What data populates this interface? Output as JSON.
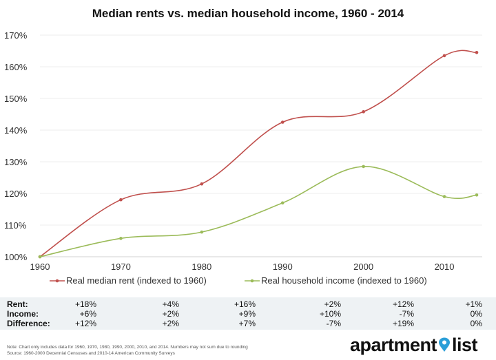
{
  "chart_data": {
    "type": "line",
    "title": "Median rents vs. median household income, 1960 - 2014",
    "x": [
      1960,
      1970,
      1980,
      1990,
      2000,
      2010,
      2014
    ],
    "x_ticks": [
      "1960",
      "1970",
      "1980",
      "1990",
      "2000",
      "2010"
    ],
    "y_ticks": [
      "100%",
      "110%",
      "120%",
      "130%",
      "140%",
      "150%",
      "160%",
      "170%"
    ],
    "ylim": [
      100,
      170
    ],
    "grid": true,
    "legend_position": "bottom",
    "series": [
      {
        "name": "Real median rent (indexed to 1960)",
        "color": "#c0504d",
        "values": [
          100,
          118,
          123,
          142.5,
          145.8,
          163.5,
          164.5
        ]
      },
      {
        "name": "Real household income (indexed to 1960)",
        "color": "#9bbb59",
        "values": [
          100,
          105.8,
          107.8,
          117,
          128.5,
          119,
          119.5
        ]
      }
    ]
  },
  "table": {
    "rows": [
      {
        "label": "Rent:",
        "values": [
          "+18%",
          "+4%",
          "+16%",
          "+2%",
          "+12%",
          "+1%"
        ]
      },
      {
        "label": "Income:",
        "values": [
          "+6%",
          "+2%",
          "+9%",
          "+10%",
          "-7%",
          "0%"
        ]
      },
      {
        "label": "Difference:",
        "values": [
          "+12%",
          "+2%",
          "+7%",
          "-7%",
          "+19%",
          "0%"
        ]
      }
    ]
  },
  "footer": {
    "note": "Note: Chart only includes data for 1960, 1970, 1980, 1990, 2000, 2010, and 2014. Numbers may not sum due to rounding",
    "source": "Source: 1960-2000 Decennial Censuses and 2010-14 American Community Surveys",
    "logo_left": "apartment",
    "logo_right": "list",
    "logo_pin_color": "#2a9fd8"
  }
}
